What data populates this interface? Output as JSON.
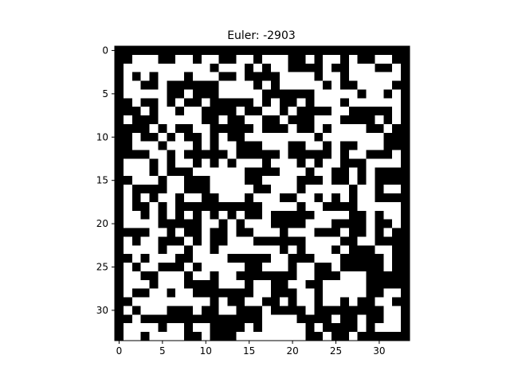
{
  "chart_data": {
    "type": "heatmap",
    "title": "Euler: -2903",
    "xlabel": "",
    "ylabel": "",
    "cmap": "gray",
    "colors": {
      "0": "#000000",
      "1": "#ffffff"
    },
    "xlim": [
      -0.5,
      33.5
    ],
    "ylim": [
      33.5,
      -0.5
    ],
    "x_ticks": [
      0,
      5,
      10,
      15,
      20,
      25,
      30
    ],
    "y_ticks": [
      0,
      5,
      10,
      15,
      20,
      25,
      30
    ],
    "grid": false,
    "legend": "none",
    "rows": [
      "0000000000000000000000000000000000",
      "0011100110110011011100101101001100",
      "0111111111101110101100001001110010",
      "0101011101110010000111101101111110",
      "0110010000001111010111110100111100",
      "0111110010001111100000011111011010",
      "0010010100100000101001011101111110",
      "0001011011000010011010000110000010",
      "0100011111001001100100011100001010",
      "0000101001100000100010010111100100",
      "0010010100101001111111101111111000",
      "0011101110101100011100110100111000",
      "0000110100000100000100000101100010",
      "0111010110101011101110101100011110",
      "0111010001111110000111011001010000",
      "0011101100011110011110001001010000",
      "0100001100011111001110111110110110",
      "0101011011001110111001101010110000",
      "0100101000000000011110110000111110",
      "0110101010101010010000011110010110",
      "0111100000110101110000111000010010",
      "0000110100100100111011100010010100",
      "0101100010100111000000111100110000",
      "0111101101101111111010111010001100",
      "0010111001111000001100011100000100",
      "0101100010111110011101100100000100",
      "0110011101101100000001100011100000",
      "0111011100001110110011001111100000",
      "0100110110000000110001101111100110",
      "0011111111101001100101101101001100",
      "0101110001001100010000100000000110",
      "0010000000000000011110000100100110",
      "0111101101100001011111010000101110",
      "0110111100100011111111001001000000"
    ]
  }
}
